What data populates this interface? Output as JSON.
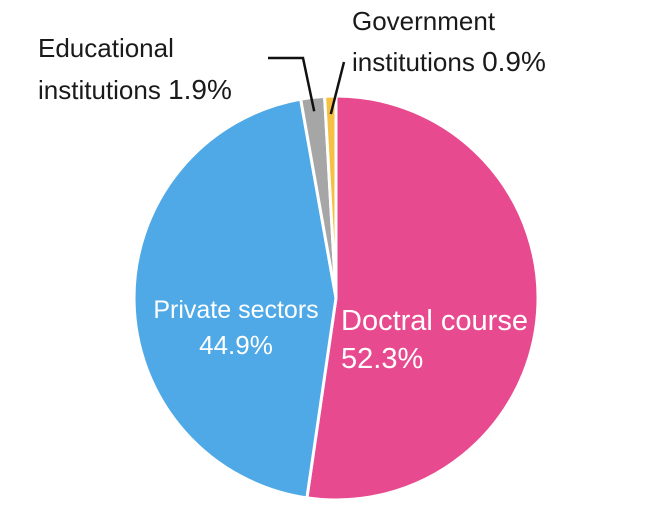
{
  "chart_data": {
    "type": "pie",
    "slices": [
      {
        "label_lines": [
          "Doctral course"
        ],
        "value_text": "52.3%",
        "value": 52.3,
        "color": "#E84A8F",
        "label_color": "#ffffff"
      },
      {
        "label_lines": [
          "Private sectors"
        ],
        "value_text": "44.9%",
        "value": 44.9,
        "color": "#4FA9E6",
        "label_color": "#ffffff"
      },
      {
        "label_lines": [
          "Educational",
          "institutions"
        ],
        "value_text": "1.9%",
        "value": 1.9,
        "color": "#A6A6A6",
        "label_color": "#1a1a1a"
      },
      {
        "label_lines": [
          "Government",
          "institutions"
        ],
        "value_text": "0.9%",
        "value": 0.9,
        "color": "#F5C043",
        "label_color": "#1a1a1a"
      }
    ],
    "start_angle_deg": 0,
    "direction": "clockwise"
  }
}
